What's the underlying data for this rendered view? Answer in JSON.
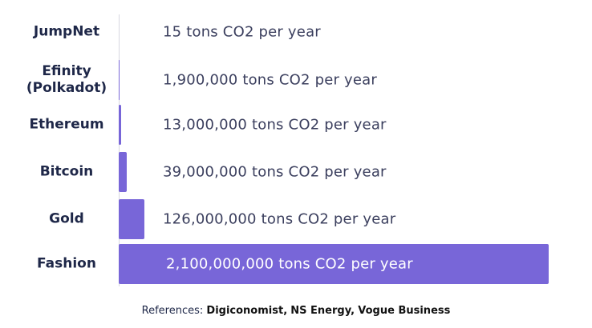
{
  "chart_data": {
    "type": "bar",
    "orientation": "horizontal",
    "categories": [
      "JumpNet",
      "Efinity (Polkadot)",
      "Ethereum",
      "Bitcoin",
      "Gold",
      "Fashion"
    ],
    "values": [
      15,
      1900000,
      13000000,
      39000000,
      126000000,
      2100000000
    ],
    "value_labels": [
      "15 tons CO2 per year",
      "1,900,000 tons CO2 per year",
      "13,000,000 tons CO2 per year",
      "39,000,000 tons CO2 per year",
      "126,000,000 tons CO2 per year",
      "2,100,000,000 tons CO2 per year"
    ],
    "color": "#7866d8"
  },
  "footer": {
    "label": "References:",
    "sources": [
      "Digiconomist,",
      "NS Energy,",
      "Vogue Business"
    ]
  }
}
